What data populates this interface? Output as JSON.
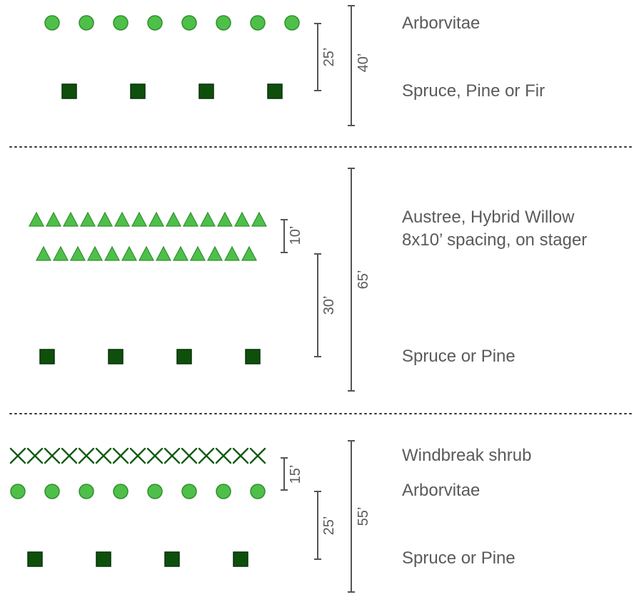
{
  "colors": {
    "light_green": "#4ec04a",
    "light_green_stroke": "#2f8f2c",
    "dark_green": "#0e4f0c",
    "dark_green_stroke": "#06330a",
    "x_green": "#0f5a0f",
    "text": "#5a5a5a",
    "line": "#555555",
    "divider": "#333333"
  },
  "icons": {
    "arborvitae": "green-circle",
    "spruce": "dark-green-square",
    "willow": "green-triangle",
    "shrub": "green-x"
  },
  "panels": [
    {
      "labels": {
        "row1": "Arborvitae",
        "row2": "Spruce, Pine or Fir"
      },
      "dims": {
        "inner": "25’",
        "outer": "40’"
      }
    },
    {
      "labels": {
        "row1_line1": "Austree, Hybrid Willow",
        "row1_line2": "8x10’ spacing, on stager",
        "row2": "Spruce or Pine"
      },
      "dims": {
        "small": "10’",
        "inner": "30’",
        "outer": "65’"
      }
    },
    {
      "labels": {
        "row1": "Windbreak shrub",
        "row2": "Arborvitae",
        "row3": "Spruce or Pine"
      },
      "dims": {
        "small": "15’",
        "inner": "25’",
        "outer": "55’"
      }
    }
  ]
}
